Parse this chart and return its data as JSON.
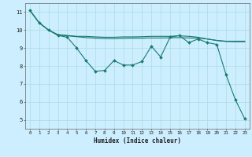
{
  "xlabel": "Humidex (Indice chaleur)",
  "bg_color": "#cceeff",
  "grid_color": "#aadddd",
  "line_color": "#1a7a6e",
  "xlim": [
    -0.5,
    23.5
  ],
  "ylim": [
    4.5,
    11.5
  ],
  "xticks": [
    0,
    1,
    2,
    3,
    4,
    5,
    6,
    7,
    8,
    9,
    10,
    11,
    12,
    13,
    14,
    15,
    16,
    17,
    18,
    19,
    20,
    21,
    22,
    23
  ],
  "yticks": [
    5,
    6,
    7,
    8,
    9,
    10,
    11
  ],
  "line1_x": [
    0,
    1,
    2,
    3,
    4,
    5,
    6,
    7,
    8,
    9,
    10,
    11,
    12,
    13,
    14,
    15,
    16,
    17,
    18,
    19,
    20,
    21,
    22,
    23
  ],
  "line1_y": [
    11.1,
    10.4,
    10.0,
    9.7,
    9.6,
    9.0,
    8.3,
    7.7,
    7.75,
    8.3,
    8.05,
    8.05,
    8.25,
    9.1,
    8.5,
    9.6,
    9.7,
    9.3,
    9.5,
    9.3,
    9.2,
    7.5,
    6.1,
    5.05
  ],
  "line2_x": [
    0,
    1,
    2,
    3,
    4,
    5,
    6,
    7,
    8,
    9,
    10,
    11,
    12,
    13,
    14,
    15,
    16,
    17,
    18,
    19,
    20,
    21,
    22,
    23
  ],
  "line2_y": [
    11.1,
    10.4,
    10.0,
    9.75,
    9.7,
    9.65,
    9.65,
    9.62,
    9.6,
    9.6,
    9.62,
    9.62,
    9.63,
    9.65,
    9.65,
    9.65,
    9.68,
    9.65,
    9.6,
    9.5,
    9.42,
    9.38,
    9.38,
    9.38
  ],
  "line3_x": [
    0,
    1,
    2,
    3,
    4,
    5,
    6,
    7,
    8,
    9,
    10,
    11,
    12,
    13,
    14,
    15,
    16,
    17,
    18,
    19,
    20,
    21,
    22,
    23
  ],
  "line3_y": [
    11.1,
    10.4,
    10.0,
    9.72,
    9.68,
    9.63,
    9.58,
    9.55,
    9.53,
    9.52,
    9.54,
    9.55,
    9.55,
    9.56,
    9.56,
    9.57,
    9.58,
    9.56,
    9.55,
    9.5,
    9.42,
    9.36,
    9.35,
    9.35
  ]
}
